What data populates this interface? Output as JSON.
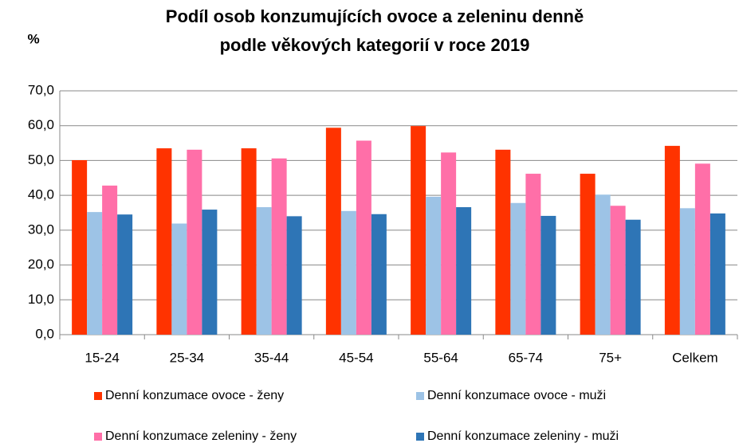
{
  "chart_data": {
    "type": "bar",
    "title": [
      "Podíl osob konzumujících ovoce a zeleninu denně",
      "podle věkových kategorií v roce 2019"
    ],
    "y_label": "%",
    "categories": [
      "15-24",
      "25-34",
      "35-44",
      "45-54",
      "55-64",
      "65-74",
      "75+",
      "Celkem"
    ],
    "series": [
      {
        "name": "Denní konzumace ovoce - ženy",
        "color": "#ff3300",
        "values": [
          50.1,
          53.5,
          53.5,
          59.4,
          59.9,
          53.1,
          46.2,
          54.2
        ]
      },
      {
        "name": "Denní konzumace ovoce - muži",
        "color": "#9dc3e6",
        "values": [
          35.2,
          31.9,
          36.6,
          35.5,
          39.6,
          37.8,
          40.2,
          36.3
        ]
      },
      {
        "name": "Denní konzumace zeleniny - ženy",
        "color": "#ff6fa8",
        "values": [
          42.8,
          53.1,
          50.6,
          55.7,
          52.3,
          46.2,
          37.0,
          49.1
        ]
      },
      {
        "name": "Denní konzumace zeleniny - muži",
        "color": "#2e75b6",
        "values": [
          34.5,
          35.9,
          34.0,
          34.6,
          36.6,
          34.1,
          33.0,
          34.8
        ]
      }
    ],
    "ylim": [
      0,
      70
    ],
    "yticks": [
      {
        "value": 0,
        "label": "0,0"
      },
      {
        "value": 10,
        "label": "10,0"
      },
      {
        "value": 20,
        "label": "20,0"
      },
      {
        "value": 30,
        "label": "30,0"
      },
      {
        "value": 40,
        "label": "40,0"
      },
      {
        "value": 50,
        "label": "50,0"
      },
      {
        "value": 60,
        "label": "60,0"
      },
      {
        "value": 70,
        "label": "70,0"
      }
    ],
    "grid": true
  }
}
